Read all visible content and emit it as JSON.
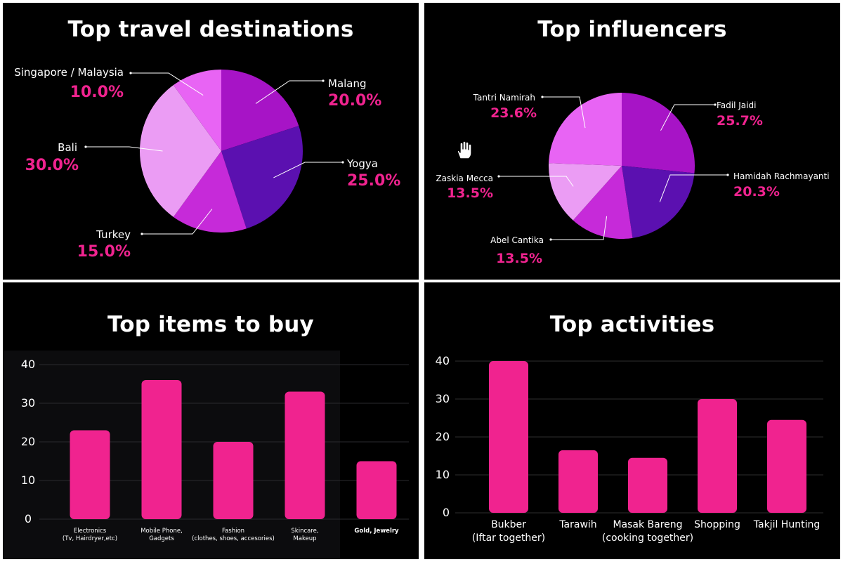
{
  "colors": {
    "background": "#000000",
    "accent": "#f0238f",
    "pie_shades": [
      "#a714c6",
      "#5b10b0",
      "#c62ad9",
      "#eb9cf4",
      "#e864f4"
    ]
  },
  "panels": {
    "destinations": {
      "title": "Top travel destinations"
    },
    "influencers": {
      "title": "Top influencers"
    },
    "items": {
      "title": "Top items to buy"
    },
    "activities": {
      "title": "Top activities"
    }
  },
  "chart_data": [
    {
      "type": "pie",
      "title": "Top travel destinations",
      "categories": [
        "Malang",
        "Yogya",
        "Turkey",
        "Bali",
        "Singapore / Malaysia"
      ],
      "values": [
        20.0,
        25.0,
        15.0,
        30.0,
        10.0
      ],
      "value_labels": [
        "20.0%",
        "25.0%",
        "15.0%",
        "30.0%",
        "10.0%"
      ]
    },
    {
      "type": "pie",
      "title": "Top influencers",
      "categories": [
        "Fadil Jaidi",
        "Hamidah Rachmayanti",
        "Abel Cantika",
        "Zaskia Mecca",
        "Tantri Namirah"
      ],
      "values": [
        25.7,
        20.3,
        13.5,
        13.5,
        23.6
      ],
      "value_labels": [
        "25.7%",
        "20.3%",
        "13.5%",
        "13.5%",
        "23.6%"
      ]
    },
    {
      "type": "bar",
      "title": "Top items to buy",
      "categories": [
        [
          "Electronics",
          "(Tv, Hairdryer,etc)"
        ],
        [
          "Mobile Phone,",
          "Gadgets"
        ],
        [
          "Fashion",
          "(clothes, shoes, accesories)"
        ],
        [
          "Skincare,",
          "Makeup"
        ],
        [
          "Gold, Jewelry"
        ]
      ],
      "values": [
        23,
        36,
        20,
        33,
        15
      ],
      "y_ticks": [
        0,
        10,
        20,
        30,
        40
      ],
      "ylim": [
        0,
        40
      ],
      "grid": true
    },
    {
      "type": "bar",
      "title": "Top activities",
      "categories": [
        [
          "Bukber",
          "(Iftar together)"
        ],
        [
          "Tarawih"
        ],
        [
          "Masak Bareng",
          "(cooking together)"
        ],
        [
          "Shopping"
        ],
        [
          "Takjil Hunting"
        ]
      ],
      "values": [
        40,
        16.5,
        14.5,
        30,
        24.5
      ],
      "y_ticks": [
        0,
        10,
        20,
        30,
        40
      ],
      "ylim": [
        0,
        40
      ],
      "grid": true
    }
  ],
  "icons": {
    "cursor": "hand-cursor-icon"
  }
}
